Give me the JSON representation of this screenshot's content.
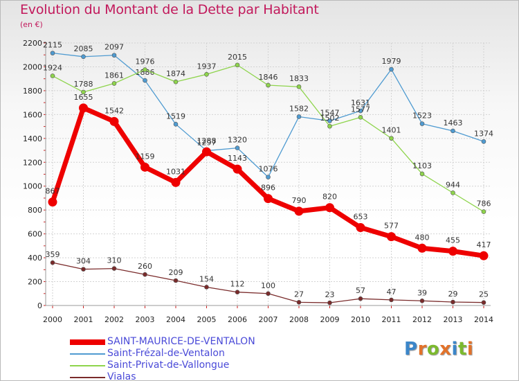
{
  "title": "Evolution du Montant de la Dette par Habitant",
  "subtitle": "(en €)",
  "logo": {
    "text": "Proxiti",
    "letters": [
      {
        "ch": "P",
        "color": "#3b86c9"
      },
      {
        "ch": "r",
        "color": "#e2722a"
      },
      {
        "ch": "o",
        "color": "#7cb92e"
      },
      {
        "ch": "x",
        "color": "#e2722a"
      },
      {
        "ch": "i",
        "color": "#3b86c9"
      },
      {
        "ch": "t",
        "color": "#7cb92e"
      },
      {
        "ch": "i",
        "color": "#e2722a"
      }
    ]
  },
  "chart_data": {
    "type": "line",
    "title": "Evolution du Montant de la Dette par Habitant",
    "subtitle": "(en €)",
    "x": [
      2000,
      2001,
      2002,
      2003,
      2004,
      2005,
      2006,
      2007,
      2008,
      2009,
      2010,
      2011,
      2012,
      2013,
      2014
    ],
    "ylim": [
      0,
      2200
    ],
    "yticks": [
      0,
      200,
      400,
      600,
      800,
      1000,
      1200,
      1400,
      1600,
      1800,
      2000,
      2200
    ],
    "grid": true,
    "legend_position": "bottom-left",
    "series": [
      {
        "name": "SAINT-MAURICE-DE-VENTALON",
        "color": "#ee0000",
        "emphasis": true,
        "values": [
          867,
          1655,
          1542,
          1159,
          1031,
          1288,
          1143,
          896,
          790,
          820,
          653,
          577,
          480,
          455,
          417
        ]
      },
      {
        "name": "Saint-Frézal-de-Ventalon",
        "color": "#4f9bd1",
        "emphasis": false,
        "values": [
          2115,
          2085,
          2097,
          1886,
          1519,
          1297,
          1320,
          1076,
          1582,
          1547,
          1631,
          1979,
          1523,
          1463,
          1374
        ]
      },
      {
        "name": "Saint-Privat-de-Vallongue",
        "color": "#8ed44c",
        "emphasis": false,
        "values": [
          1924,
          1788,
          1861,
          1976,
          1874,
          1937,
          2015,
          1846,
          1833,
          1502,
          1577,
          1401,
          1103,
          944,
          786
        ]
      },
      {
        "name": "Vialas",
        "color": "#7a2b2b",
        "emphasis": false,
        "values": [
          359,
          304,
          310,
          260,
          209,
          154,
          112,
          100,
          27,
          23,
          57,
          47,
          39,
          29,
          25
        ]
      }
    ]
  }
}
